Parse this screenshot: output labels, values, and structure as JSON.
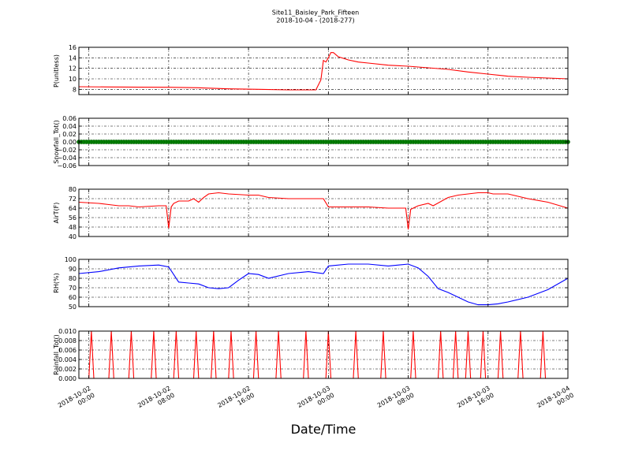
{
  "title": "Site11_Baisley_Park_Fifteen",
  "subtitle": "2018-10-04 - (2018-277)",
  "xlabel": "Date/Time",
  "x_ticks": [
    {
      "value": "2018-10-02 00:00",
      "line1": "2018-10-02",
      "line2": "00:00"
    },
    {
      "value": "2018-10-02 08:00",
      "line1": "2018-10-02",
      "line2": "08:00"
    },
    {
      "value": "2018-10-02 16:00",
      "line1": "2018-10-02",
      "line2": "16:00"
    },
    {
      "value": "2018-10-03 00:00",
      "line1": "2018-10-03",
      "line2": "00:00"
    },
    {
      "value": "2018-10-03 08:00",
      "line1": "2018-10-03",
      "line2": "08:00"
    },
    {
      "value": "2018-10-03 16:00",
      "line1": "2018-10-03",
      "line2": "16:00"
    },
    {
      "value": "2018-10-04 00:00",
      "line1": "2018-10-04",
      "line2": "00:00"
    }
  ],
  "chart_data": [
    {
      "type": "line",
      "ylabel": "P(unitless)",
      "color": "#ff0000",
      "ylim": [
        7,
        16
      ],
      "yticks": [
        8,
        10,
        12,
        14,
        16
      ],
      "ytick_labels": [
        "8",
        "10",
        "12",
        "14",
        "16"
      ],
      "grid": true,
      "xlim": [
        "2018-10-01 23:00",
        "2018-10-04 00:00"
      ],
      "x": [
        "2018-10-01 23:00",
        "2018-10-02 02:00",
        "2018-10-02 05:00",
        "2018-10-02 08:00",
        "2018-10-02 11:00",
        "2018-10-02 14:00",
        "2018-10-02 17:00",
        "2018-10-02 20:00",
        "2018-10-02 22:45",
        "2018-10-02 23:15",
        "2018-10-02 23:30",
        "2018-10-02 23:45",
        "2018-10-03 00:00",
        "2018-10-03 00:15",
        "2018-10-03 00:30",
        "2018-10-03 01:00",
        "2018-10-03 02:00",
        "2018-10-03 03:00",
        "2018-10-03 04:00",
        "2018-10-03 06:00",
        "2018-10-03 08:00",
        "2018-10-03 10:00",
        "2018-10-03 12:00",
        "2018-10-03 14:00",
        "2018-10-03 16:00",
        "2018-10-03 18:00",
        "2018-10-03 20:00",
        "2018-10-03 22:00",
        "2018-10-04 00:00"
      ],
      "y": [
        8.5,
        8.45,
        8.42,
        8.4,
        8.3,
        8.1,
        8.0,
        7.9,
        7.9,
        9.8,
        13.5,
        13.2,
        14.0,
        15.0,
        15.0,
        14.2,
        13.6,
        13.2,
        13.0,
        12.6,
        12.4,
        12.1,
        11.8,
        11.3,
        10.9,
        10.5,
        10.3,
        10.15,
        10.0
      ]
    },
    {
      "type": "scatter",
      "ylabel": "Snowfall_Tot()",
      "color": "#008000",
      "ylim": [
        -0.06,
        0.06
      ],
      "yticks": [
        -0.06,
        -0.04,
        -0.02,
        0.0,
        0.02,
        0.04,
        0.06
      ],
      "ytick_labels": [
        "−0.06",
        "−0.04",
        "−0.02",
        "0.00",
        "0.02",
        "0.04",
        "0.06"
      ],
      "grid": true,
      "xlim": [
        "2018-10-01 23:00",
        "2018-10-04 00:00"
      ],
      "x_range": [
        "2018-10-01 23:00",
        "2018-10-04 00:00"
      ],
      "interval_minutes": 15,
      "constant_value": 0.0
    },
    {
      "type": "line",
      "ylabel": "AirT(F)",
      "color": "#ff0000",
      "ylim": [
        40,
        80
      ],
      "yticks": [
        40,
        48,
        56,
        64,
        72,
        80
      ],
      "ytick_labels": [
        "40",
        "48",
        "56",
        "64",
        "72",
        "80"
      ],
      "grid": true,
      "xlim": [
        "2018-10-01 23:00",
        "2018-10-04 00:00"
      ],
      "x": [
        "2018-10-01 23:00",
        "2018-10-02 01:00",
        "2018-10-02 02:00",
        "2018-10-02 03:00",
        "2018-10-02 04:00",
        "2018-10-02 05:00",
        "2018-10-02 07:00",
        "2018-10-02 07:45",
        "2018-10-02 08:00",
        "2018-10-02 08:15",
        "2018-10-02 08:30",
        "2018-10-02 09:00",
        "2018-10-02 10:00",
        "2018-10-02 10:30",
        "2018-10-02 11:00",
        "2018-10-02 11:30",
        "2018-10-02 12:00",
        "2018-10-02 13:00",
        "2018-10-02 14:00",
        "2018-10-02 16:00",
        "2018-10-02 17:00",
        "2018-10-02 18:00",
        "2018-10-02 20:00",
        "2018-10-02 22:00",
        "2018-10-02 23:30",
        "2018-10-03 00:00",
        "2018-10-03 02:00",
        "2018-10-03 04:00",
        "2018-10-03 06:00",
        "2018-10-03 07:45",
        "2018-10-03 08:00",
        "2018-10-03 08:15",
        "2018-10-03 09:00",
        "2018-10-03 10:00",
        "2018-10-03 10:30",
        "2018-10-03 12:00",
        "2018-10-03 13:00",
        "2018-10-03 14:00",
        "2018-10-03 15:00",
        "2018-10-03 16:00",
        "2018-10-03 16:30",
        "2018-10-03 18:00",
        "2018-10-03 19:00",
        "2018-10-03 20:00",
        "2018-10-03 22:00",
        "2018-10-04 00:00"
      ],
      "y": [
        69,
        68,
        67,
        66,
        66,
        65,
        66,
        66,
        47,
        65,
        68,
        70,
        70,
        72,
        69,
        73,
        76,
        77,
        76,
        75,
        75,
        73,
        72,
        72,
        72,
        65,
        65,
        65,
        64,
        64,
        46,
        63,
        66,
        68,
        66,
        73,
        75,
        76,
        77,
        77,
        76,
        76,
        74,
        72,
        69,
        64
      ]
    },
    {
      "type": "line",
      "ylabel": "RH(%)",
      "color": "#0000ff",
      "ylim": [
        50,
        100
      ],
      "yticks": [
        50,
        60,
        70,
        80,
        90,
        100
      ],
      "ytick_labels": [
        "50",
        "60",
        "70",
        "80",
        "90",
        "100"
      ],
      "grid": true,
      "xlim": [
        "2018-10-01 23:00",
        "2018-10-04 00:00"
      ],
      "x": [
        "2018-10-01 23:00",
        "2018-10-02 01:00",
        "2018-10-02 03:00",
        "2018-10-02 05:00",
        "2018-10-02 07:00",
        "2018-10-02 08:00",
        "2018-10-02 09:00",
        "2018-10-02 10:00",
        "2018-10-02 11:00",
        "2018-10-02 12:00",
        "2018-10-02 13:00",
        "2018-10-02 14:00",
        "2018-10-02 15:00",
        "2018-10-02 16:00",
        "2018-10-02 17:00",
        "2018-10-02 18:00",
        "2018-10-02 20:00",
        "2018-10-02 22:00",
        "2018-10-02 23:30",
        "2018-10-03 00:00",
        "2018-10-03 02:00",
        "2018-10-03 04:00",
        "2018-10-03 06:00",
        "2018-10-03 08:00",
        "2018-10-03 09:00",
        "2018-10-03 10:00",
        "2018-10-03 11:00",
        "2018-10-03 12:00",
        "2018-10-03 13:00",
        "2018-10-03 14:00",
        "2018-10-03 15:00",
        "2018-10-03 16:00",
        "2018-10-03 17:00",
        "2018-10-03 18:00",
        "2018-10-03 20:00",
        "2018-10-03 22:00",
        "2018-10-04 00:00"
      ],
      "y": [
        85,
        87,
        91,
        93,
        94,
        92,
        76,
        75,
        74,
        70,
        69,
        70,
        78,
        85,
        84,
        80,
        85,
        87,
        85,
        93,
        95,
        95,
        93,
        95,
        91,
        82,
        69,
        65,
        60,
        55,
        52,
        52,
        53,
        55,
        60,
        68,
        80
      ]
    },
    {
      "type": "line",
      "ylabel": "Rainfall_Tot()",
      "color": "#ff0000",
      "ylim": [
        0.0,
        0.01
      ],
      "yticks": [
        0.0,
        0.002,
        0.004,
        0.006,
        0.008,
        0.01
      ],
      "ytick_labels": [
        "0.000",
        "0.002",
        "0.004",
        "0.006",
        "0.008",
        "0.010"
      ],
      "grid": true,
      "xlim": [
        "2018-10-01 23:00",
        "2018-10-04 00:00"
      ],
      "baseline": 0.0,
      "spike_value": 0.01,
      "spike_half_width_minutes": 15,
      "spike_times": [
        "2018-10-02 00:15",
        "2018-10-02 02:15",
        "2018-10-02 04:15",
        "2018-10-02 06:30",
        "2018-10-02 08:45",
        "2018-10-02 10:45",
        "2018-10-02 12:30",
        "2018-10-02 14:15",
        "2018-10-02 16:45",
        "2018-10-02 19:00",
        "2018-10-02 21:45",
        "2018-10-03 00:00",
        "2018-10-03 02:45",
        "2018-10-03 05:30",
        "2018-10-03 08:30",
        "2018-10-03 11:15",
        "2018-10-03 12:45",
        "2018-10-03 14:00",
        "2018-10-03 15:30",
        "2018-10-03 17:15",
        "2018-10-03 19:15",
        "2018-10-03 21:30"
      ]
    }
  ]
}
